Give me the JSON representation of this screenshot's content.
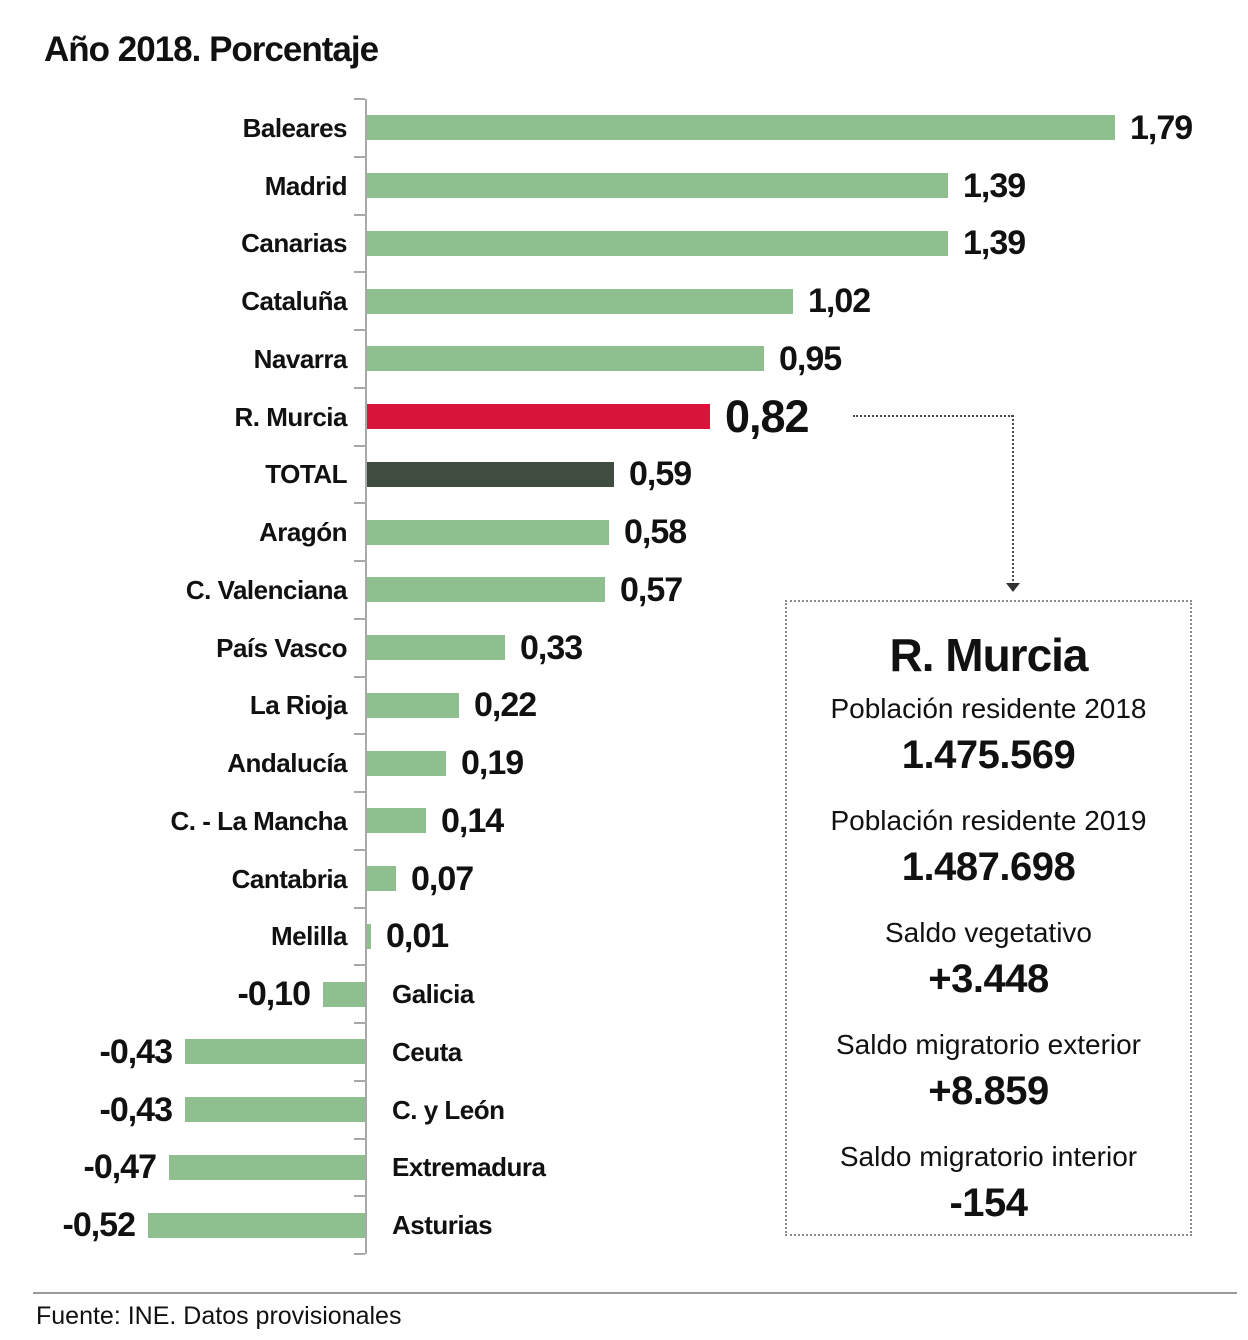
{
  "chart_data": {
    "type": "bar",
    "orientation": "horizontal",
    "title": "Año 2018. Porcentaje",
    "xlabel": "",
    "ylabel": "",
    "xlim": [
      -0.6,
      1.9
    ],
    "grid": false,
    "legend": "none",
    "colors": {
      "green": "#8fbe8f",
      "red": "#d9143a",
      "dark": "#3e4d40"
    },
    "rows": [
      {
        "label": "Baleares",
        "value": 1.79,
        "display": "1,79",
        "color": "green"
      },
      {
        "label": "Madrid",
        "value": 1.39,
        "display": "1,39",
        "color": "green"
      },
      {
        "label": "Canarias",
        "value": 1.39,
        "display": "1,39",
        "color": "green"
      },
      {
        "label": "Cataluña",
        "value": 1.02,
        "display": "1,02",
        "color": "green"
      },
      {
        "label": "Navarra",
        "value": 0.95,
        "display": "0,95",
        "color": "green"
      },
      {
        "label": "R. Murcia",
        "value": 0.82,
        "display": "0,82",
        "color": "red",
        "emphasis": true
      },
      {
        "label": "TOTAL",
        "value": 0.59,
        "display": "0,59",
        "color": "dark"
      },
      {
        "label": "Aragón",
        "value": 0.58,
        "display": "0,58",
        "color": "green"
      },
      {
        "label": "C. Valenciana",
        "value": 0.57,
        "display": "0,57",
        "color": "green"
      },
      {
        "label": "País Vasco",
        "value": 0.33,
        "display": "0,33",
        "color": "green"
      },
      {
        "label": "La Rioja",
        "value": 0.22,
        "display": "0,22",
        "color": "green"
      },
      {
        "label": "Andalucía",
        "value": 0.19,
        "display": "0,19",
        "color": "green"
      },
      {
        "label": "C. - La Mancha",
        "value": 0.14,
        "display": "0,14",
        "color": "green"
      },
      {
        "label": "Cantabria",
        "value": 0.07,
        "display": "0,07",
        "color": "green"
      },
      {
        "label": "Melilla",
        "value": 0.01,
        "display": "0,01",
        "color": "green"
      },
      {
        "label": "Galicia",
        "value": -0.1,
        "display": "-0,10",
        "color": "green"
      },
      {
        "label": "Ceuta",
        "value": -0.43,
        "display": "-0,43",
        "color": "green"
      },
      {
        "label": "C. y León",
        "value": -0.43,
        "display": "-0,43",
        "color": "green"
      },
      {
        "label": "Extremadura",
        "value": -0.47,
        "display": "-0,47",
        "color": "green"
      },
      {
        "label": "Asturias",
        "value": -0.52,
        "display": "-0,52",
        "color": "green"
      }
    ]
  },
  "callout": {
    "title": "R. Murcia",
    "items": [
      {
        "label": "Población residente 2018",
        "value": "1.475.569"
      },
      {
        "label": "Población residente 2019",
        "value": "1.487.698"
      },
      {
        "label": "Saldo vegetativo",
        "value": "+3.448"
      },
      {
        "label": "Saldo migratorio exterior",
        "value": "+8.859"
      },
      {
        "label": "Saldo migratorio interior",
        "value": "-154"
      }
    ]
  },
  "source": "Fuente: INE. Datos provisionales"
}
